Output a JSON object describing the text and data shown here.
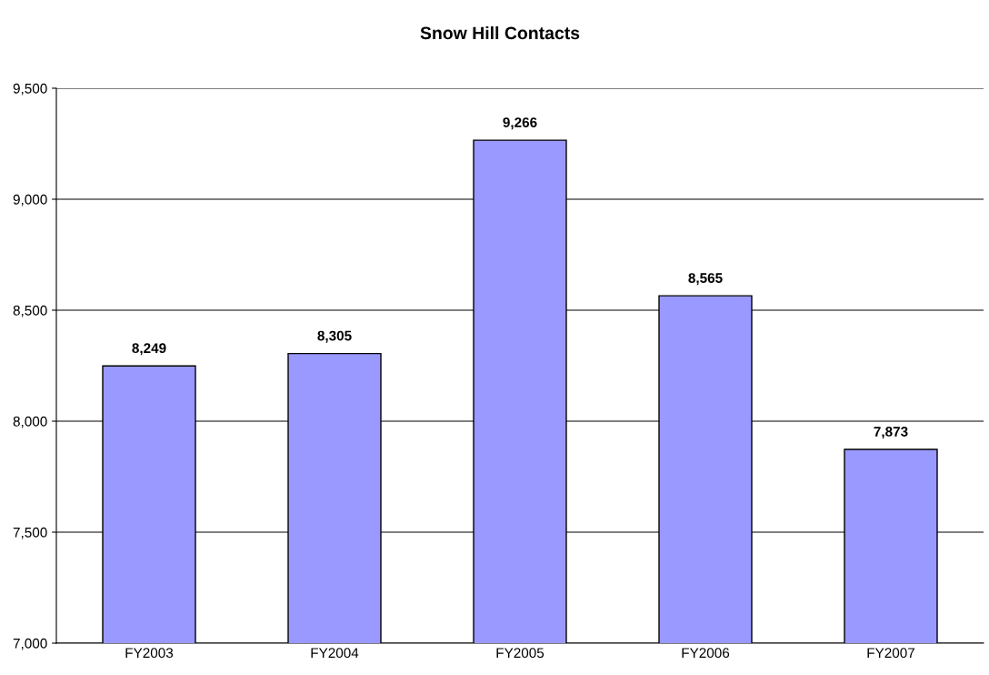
{
  "chart_data": {
    "type": "bar",
    "title": "Snow Hill Contacts",
    "categories": [
      "FY2003",
      "FY2004",
      "FY2005",
      "FY2006",
      "FY2007"
    ],
    "values": [
      8249,
      8305,
      9266,
      8565,
      7873
    ],
    "color": "#9999ff",
    "value_labels": [
      "8,249",
      "8,305",
      "9,266",
      "8,565",
      "7,873"
    ],
    "ylim": [
      7000,
      9500
    ],
    "yticks": [
      {
        "value": 7000,
        "label": "7,000"
      },
      {
        "value": 7500,
        "label": "7,500"
      },
      {
        "value": 8000,
        "label": "8,000"
      },
      {
        "value": 8500,
        "label": "8,500"
      },
      {
        "value": 9000,
        "label": "9,000"
      },
      {
        "value": 9500,
        "label": "9,500"
      }
    ],
    "grid": "y"
  }
}
